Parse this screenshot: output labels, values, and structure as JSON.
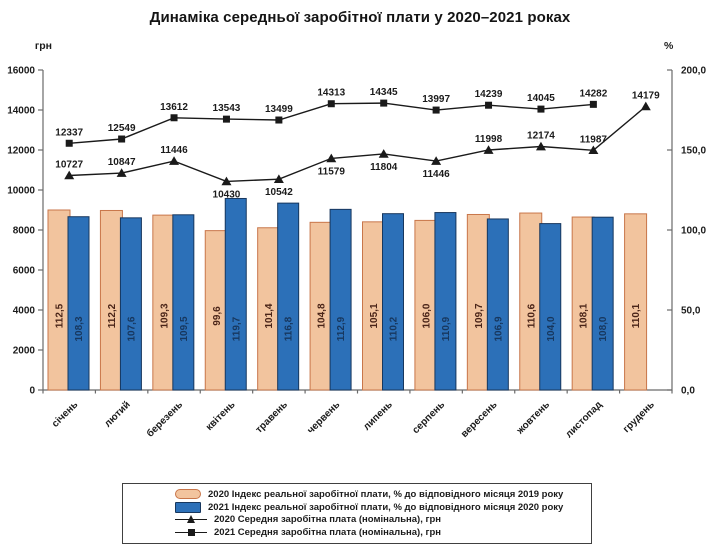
{
  "chart_data": {
    "type": "combo-bar-line",
    "title": "Динаміка середньої заробітної плати у 2020–2021 роках",
    "categories": [
      "січень",
      "лютий",
      "березень",
      "квітень",
      "травень",
      "червень",
      "липень",
      "серпень",
      "вересень",
      "жовтень",
      "листопад",
      "грудень"
    ],
    "left_axis": {
      "label": "грн",
      "min": 0,
      "max": 16000,
      "ticks": [
        "0",
        "2000",
        "4000",
        "6000",
        "8000",
        "10000",
        "12000",
        "14000",
        "16000"
      ]
    },
    "right_axis": {
      "label": "%",
      "min": 0,
      "max": 200,
      "ticks": [
        "0,0",
        "50,0",
        "100,0",
        "150,0",
        "200,0"
      ]
    },
    "legend_position": "bottom",
    "grid": "off",
    "bar_series": [
      {
        "name": "2020 Індекс реальної заробітної плати, % до відповідного місяця 2019 року",
        "axis": "right",
        "color": "#F2C49E",
        "border": "#C8764A",
        "label_color": "#4A2418",
        "values": [
          112.5,
          112.2,
          109.3,
          99.6,
          101.4,
          104.8,
          105.1,
          106.0,
          109.7,
          110.6,
          108.1,
          110.1
        ],
        "labels": [
          "112,5",
          "112,2",
          "109,3",
          "99,6",
          "101,4",
          "104,8",
          "105,1",
          "106,0",
          "109,7",
          "110,6",
          "108,1",
          "110,1"
        ]
      },
      {
        "name": "2021 Індекс реальної заробітної плати, % до відповідного місяця 2020 року",
        "axis": "right",
        "color": "#2C70B8",
        "border": "#17375E",
        "label_color": "#17375E",
        "values": [
          108.3,
          107.6,
          109.5,
          119.7,
          116.8,
          112.9,
          110.2,
          110.9,
          106.9,
          104.0,
          108.0,
          null
        ],
        "labels": [
          "108,3",
          "107,6",
          "109,5",
          "119,7",
          "116,8",
          "112,9",
          "110,2",
          "110,9",
          "106,9",
          "104,0",
          "108,0",
          null
        ]
      }
    ],
    "line_series": [
      {
        "name": "2020 Середня заробітна плата (номінальна), грн",
        "axis": "left",
        "marker": "triangle",
        "color": "#1a1a1a",
        "values": [
          10727,
          10847,
          11446,
          10430,
          10542,
          11579,
          11804,
          11446,
          11998,
          12174,
          11987,
          14179
        ],
        "labels": [
          "10727",
          "10847",
          "11446",
          "10430",
          "10542",
          "11579",
          "11804",
          "11446",
          "11998",
          "12174",
          "11987",
          "14179"
        ],
        "label_pos": [
          "above",
          "above",
          "above",
          "below",
          "below",
          "below",
          "below",
          "below",
          "above",
          "above",
          "above",
          "above"
        ]
      },
      {
        "name": "2021 Середня заробітна плата (номінальна), грн",
        "axis": "left",
        "marker": "square",
        "color": "#1a1a1a",
        "values": [
          12337,
          12549,
          13612,
          13543,
          13499,
          14313,
          14345,
          13997,
          14239,
          14045,
          14282,
          null
        ],
        "labels": [
          "12337",
          "12549",
          "13612",
          "13543",
          "13499",
          "14313",
          "14345",
          "13997",
          "14239",
          "14045",
          "14282",
          null
        ],
        "label_pos": [
          "above",
          "above",
          "above",
          "above",
          "above",
          "above",
          "above",
          "above",
          "above",
          "above",
          "above",
          null
        ]
      }
    ],
    "colors": {
      "axis": "#6a6a6a",
      "text": "#1b1b1b",
      "marker": "#1a1a1a"
    }
  }
}
